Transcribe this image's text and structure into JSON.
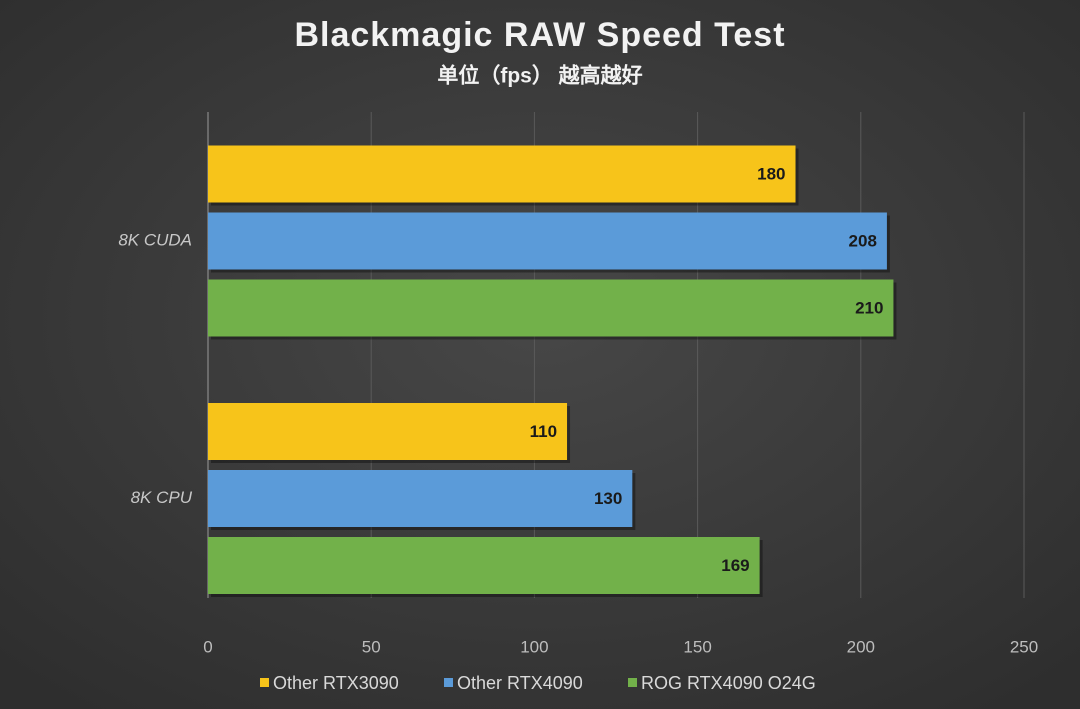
{
  "chart_data": {
    "type": "bar",
    "orientation": "horizontal",
    "title": "Blackmagic RAW Speed Test",
    "subtitle": "单位（fps） 越高越好",
    "categories": [
      "8K CUDA",
      "8K CPU"
    ],
    "series": [
      {
        "name": "Other RTX3090",
        "color": "#f7c41a",
        "values": [
          180,
          110
        ]
      },
      {
        "name": "Other RTX4090",
        "color": "#5b9bd9",
        "values": [
          208,
          130
        ]
      },
      {
        "name": "ROG RTX4090 O24G",
        "color": "#72b14a",
        "values": [
          210,
          169
        ]
      }
    ],
    "xlim": [
      0,
      250
    ],
    "xticks": [
      0,
      50,
      100,
      150,
      200,
      250
    ],
    "grid": true,
    "legend": "bottom"
  }
}
